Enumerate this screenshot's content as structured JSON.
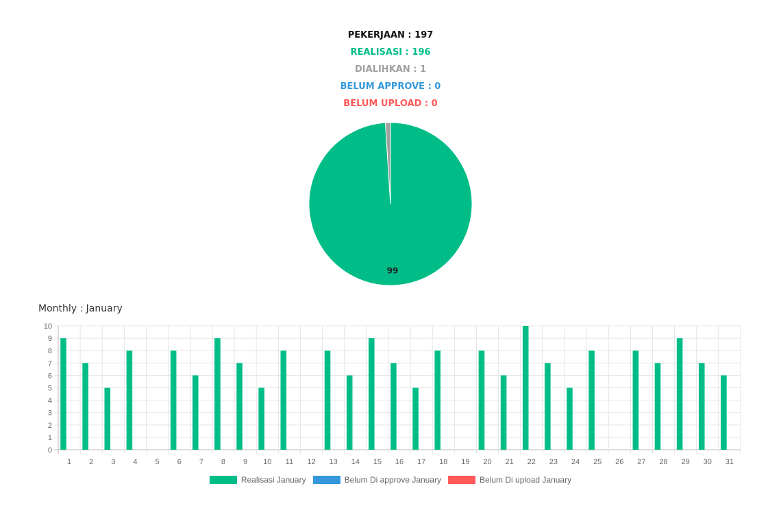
{
  "summary": {
    "pekerjaan": "PEKERJAAN : 197",
    "realisasi": "REALISASI : 196",
    "dialihkan": "DIALIHKAN : 1",
    "belum_approve": "BELUM APPROVE : 0",
    "belum_upload": "BELUM UPLOAD : 0"
  },
  "colors": {
    "black": "#111111",
    "realisasi": "#00bd88",
    "dialihkan": "#a0a0a0",
    "belum_approve": "#3498db",
    "belum_upload": "#ff5a5a"
  },
  "monthly_title": "Monthly : January",
  "chart_data": [
    {
      "type": "pie",
      "slices": [
        {
          "value": 99,
          "color": "#00bd88",
          "label": "99"
        },
        {
          "value": 1,
          "color": "#a0a0a0"
        }
      ]
    },
    {
      "type": "bar",
      "categories": [
        "1",
        "2",
        "3",
        "4",
        "5",
        "6",
        "7",
        "8",
        "9",
        "10",
        "11",
        "12",
        "13",
        "14",
        "15",
        "16",
        "17",
        "18",
        "19",
        "20",
        "21",
        "22",
        "23",
        "24",
        "25",
        "26",
        "27",
        "28",
        "29",
        "30",
        "31"
      ],
      "series": [
        {
          "name": "Realisasi January",
          "color": "#00bd88",
          "values": [
            9,
            7,
            5,
            8,
            0,
            8,
            6,
            9,
            7,
            5,
            8,
            0,
            8,
            6,
            9,
            7,
            5,
            8,
            0,
            8,
            6,
            10,
            7,
            5,
            8,
            0,
            8,
            7,
            9,
            7,
            6
          ]
        },
        {
          "name": "Belum Di approve January",
          "color": "#3498db",
          "values": [
            0,
            0,
            0,
            0,
            0,
            0,
            0,
            0,
            0,
            0,
            0,
            0,
            0,
            0,
            0,
            0,
            0,
            0,
            0,
            0,
            0,
            0,
            0,
            0,
            0,
            0,
            0,
            0,
            0,
            0,
            0
          ]
        },
        {
          "name": "Belum Di upload January",
          "color": "#ff5a5a",
          "values": [
            0,
            0,
            0,
            0,
            0,
            0,
            0,
            0,
            0,
            0,
            0,
            0,
            0,
            0,
            0,
            0,
            0,
            0,
            0,
            0,
            0,
            0,
            0,
            0,
            0,
            0,
            0,
            0,
            0,
            0,
            0
          ]
        }
      ],
      "y_ticks": [
        "0",
        "1",
        "2",
        "3",
        "4",
        "5",
        "6",
        "7",
        "8",
        "9",
        "10"
      ],
      "ylim": [
        0,
        10
      ],
      "grid": true,
      "legend_position": "bottom"
    }
  ]
}
